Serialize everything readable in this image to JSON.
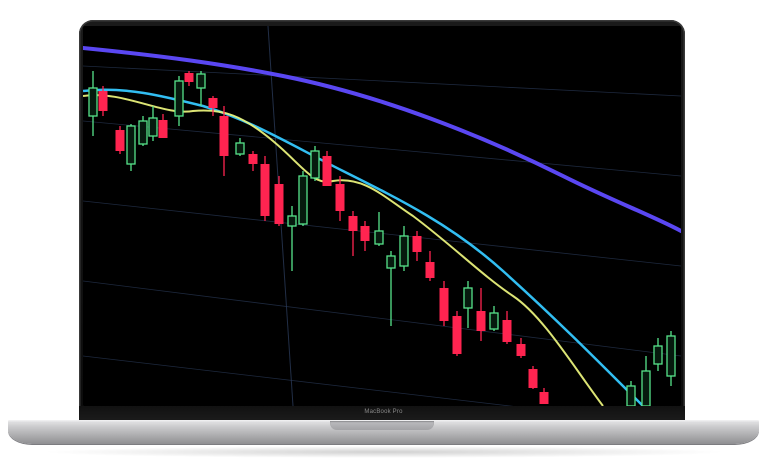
{
  "device": {
    "model_label": "MacBook Pro"
  },
  "screen": {
    "content": "candlestick-chart",
    "colors": {
      "background": "#000000",
      "bullish_candle": "#57e38a",
      "bearish_candle": "#ff2450",
      "gridline": "#2a3a58",
      "ma_long": "#5f4bff",
      "ma_mid": "#35c8ff",
      "ma_short": "#e8f07a"
    }
  }
}
